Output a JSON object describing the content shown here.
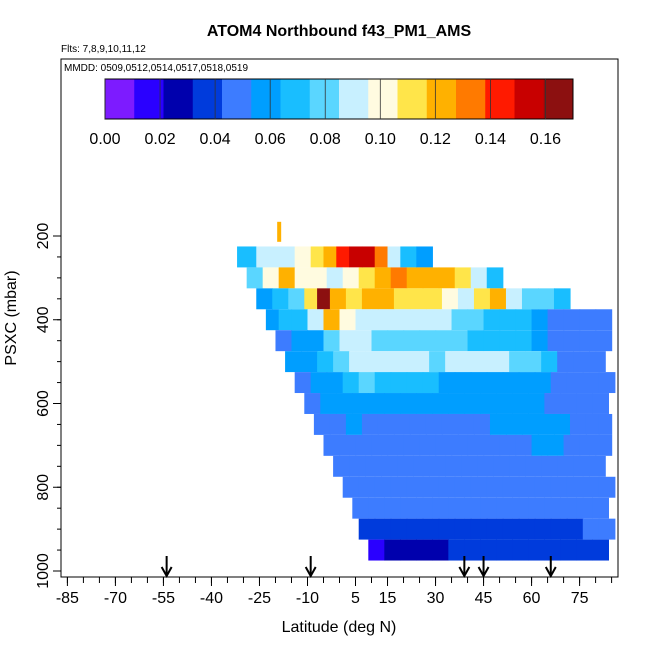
{
  "chart_data": {
    "type": "heatmap",
    "title": "ATOM4 Northbound f43_PM1_AMS",
    "subtitle": "Flts: 7,8,9,10,11,12",
    "note": "MMDD: 0509,0512,0514,0517,0518,0519",
    "xlabel": "Latitude (deg N)",
    "ylabel": "PSXC (mbar)",
    "xlim": [
      -87,
      87
    ],
    "ylim": [
      1000,
      0
    ],
    "xticks": [
      -85,
      -70,
      -55,
      -40,
      -25,
      -10,
      5,
      15,
      30,
      45,
      60,
      75
    ],
    "yticks": [
      200,
      400,
      600,
      800,
      1000
    ],
    "colorbar": {
      "range": [
        0,
        0.17
      ],
      "ticks": [
        0.0,
        0.02,
        0.04,
        0.06,
        0.08,
        0.1,
        0.12,
        0.14,
        0.16
      ],
      "tick_labels": [
        "0.00",
        "0.02",
        "0.04",
        "0.06",
        "0.08",
        "0.10",
        "0.12",
        "0.14",
        "0.16"
      ],
      "colors": [
        "#7d1bff",
        "#2a00ff",
        "#0000ad",
        "#003bdc",
        "#3d7cff",
        "#009eff",
        "#19beff",
        "#5ad6ff",
        "#c8f0ff",
        "#fffbe0",
        "#ffe54a",
        "#ffb100",
        "#ff7a00",
        "#ff1a00",
        "#c80000",
        "#8c1010"
      ]
    },
    "flight_markers_lat": [
      -54,
      -9,
      39,
      45,
      66
    ],
    "rows": [
      {
        "p": 250,
        "lat": [
          -32,
          -26,
          -20,
          -14,
          -9,
          -5,
          -1,
          3,
          7,
          11,
          15,
          19,
          24
        ],
        "v": [
          0.07,
          0.085,
          0.095,
          0.1,
          0.11,
          0.125,
          0.14,
          0.15,
          0.155,
          0.13,
          0.09,
          0.07,
          0.06
        ]
      },
      {
        "p": 300,
        "lat": [
          -29,
          -24,
          -19,
          -14,
          -9,
          -4,
          1,
          6,
          11,
          16,
          21,
          26,
          31,
          36,
          41,
          46
        ],
        "v": [
          0.08,
          0.1,
          0.12,
          0.105,
          0.1,
          0.095,
          0.1,
          0.11,
          0.12,
          0.13,
          0.125,
          0.125,
          0.12,
          0.11,
          0.09,
          0.07
        ]
      },
      {
        "p": 350,
        "lat": [
          -26,
          -21,
          -16,
          -11,
          -7,
          -3,
          2,
          7,
          12,
          17,
          22,
          27,
          32,
          37,
          42,
          47,
          52,
          57,
          62,
          67
        ],
        "v": [
          0.06,
          0.07,
          0.075,
          0.11,
          0.16,
          0.12,
          0.115,
          0.12,
          0.12,
          0.115,
          0.115,
          0.11,
          0.1,
          0.095,
          0.11,
          0.12,
          0.09,
          0.08,
          0.075,
          0.07
        ]
      },
      {
        "p": 400,
        "lat": [
          -23,
          -19,
          -15,
          -10,
          -5,
          0,
          5,
          10,
          15,
          20,
          25,
          30,
          35,
          40,
          45,
          50,
          55,
          60,
          65,
          70,
          75,
          80
        ],
        "v": [
          0.06,
          0.065,
          0.07,
          0.09,
          0.125,
          0.1,
          0.095,
          0.09,
          0.09,
          0.09,
          0.085,
          0.085,
          0.08,
          0.075,
          0.07,
          0.07,
          0.065,
          0.06,
          0.05,
          0.045,
          0.05,
          0.05
        ]
      },
      {
        "p": 450,
        "lat": [
          -20,
          -15,
          -10,
          -5,
          0,
          5,
          10,
          15,
          20,
          25,
          30,
          35,
          40,
          45,
          50,
          55,
          60,
          65,
          70,
          75,
          80
        ],
        "v": [
          0.05,
          0.055,
          0.06,
          0.075,
          0.09,
          0.085,
          0.08,
          0.08,
          0.08,
          0.08,
          0.075,
          0.075,
          0.07,
          0.07,
          0.07,
          0.065,
          0.06,
          0.05,
          0.045,
          0.05,
          0.05
        ]
      },
      {
        "p": 500,
        "lat": [
          -17,
          -12,
          -7,
          -2,
          3,
          8,
          13,
          18,
          23,
          28,
          33,
          38,
          43,
          48,
          53,
          58,
          63,
          68,
          73,
          78
        ],
        "v": [
          0.055,
          0.06,
          0.07,
          0.08,
          0.085,
          0.085,
          0.085,
          0.085,
          0.085,
          0.08,
          0.085,
          0.085,
          0.085,
          0.085,
          0.08,
          0.08,
          0.07,
          0.05,
          0.045,
          0.05
        ]
      },
      {
        "p": 550,
        "lat": [
          -14,
          -9,
          -4,
          1,
          6,
          11,
          16,
          21,
          26,
          31,
          36,
          41,
          46,
          51,
          56,
          61,
          66,
          71,
          76,
          81
        ],
        "v": [
          0.05,
          0.055,
          0.06,
          0.07,
          0.075,
          0.07,
          0.065,
          0.065,
          0.065,
          0.06,
          0.06,
          0.06,
          0.06,
          0.06,
          0.06,
          0.055,
          0.05,
          0.05,
          0.05,
          0.05
        ]
      },
      {
        "p": 600,
        "lat": [
          -11,
          -6,
          -1,
          4,
          9,
          14,
          19,
          24,
          29,
          34,
          39,
          44,
          49,
          54,
          59,
          64,
          69,
          74,
          79
        ],
        "v": [
          0.05,
          0.055,
          0.06,
          0.06,
          0.06,
          0.055,
          0.055,
          0.055,
          0.055,
          0.055,
          0.055,
          0.055,
          0.06,
          0.06,
          0.055,
          0.05,
          0.05,
          0.05,
          0.05
        ]
      },
      {
        "p": 650,
        "lat": [
          -8,
          -3,
          2,
          7,
          12,
          17,
          22,
          27,
          32,
          37,
          42,
          47,
          52,
          57,
          62,
          67,
          72,
          77,
          81
        ],
        "v": [
          0.045,
          0.05,
          0.055,
          0.05,
          0.05,
          0.05,
          0.05,
          0.05,
          0.05,
          0.05,
          0.05,
          0.055,
          0.055,
          0.06,
          0.06,
          0.055,
          0.05,
          0.05,
          0.05
        ]
      },
      {
        "p": 700,
        "lat": [
          -5,
          0,
          5,
          10,
          15,
          20,
          25,
          30,
          35,
          40,
          45,
          50,
          55,
          60,
          65,
          70,
          75,
          80
        ],
        "v": [
          0.045,
          0.05,
          0.05,
          0.05,
          0.05,
          0.05,
          0.05,
          0.05,
          0.05,
          0.05,
          0.05,
          0.05,
          0.05,
          0.055,
          0.055,
          0.05,
          0.05,
          0.05
        ]
      },
      {
        "p": 750,
        "lat": [
          -2,
          3,
          8,
          13,
          18,
          23,
          28,
          33,
          38,
          43,
          48,
          53,
          58,
          63,
          68,
          73,
          78
        ],
        "v": [
          0.045,
          0.045,
          0.05,
          0.045,
          0.045,
          0.045,
          0.045,
          0.045,
          0.045,
          0.045,
          0.05,
          0.05,
          0.05,
          0.05,
          0.05,
          0.05,
          0.05
        ]
      },
      {
        "p": 800,
        "lat": [
          1,
          6,
          11,
          16,
          21,
          26,
          31,
          36,
          41,
          46,
          51,
          56,
          61,
          66,
          71,
          76,
          81
        ],
        "v": [
          0.045,
          0.045,
          0.045,
          0.045,
          0.045,
          0.045,
          0.045,
          0.045,
          0.045,
          0.045,
          0.045,
          0.05,
          0.05,
          0.05,
          0.05,
          0.05,
          0.05
        ]
      },
      {
        "p": 850,
        "lat": [
          4,
          9,
          14,
          19,
          24,
          29,
          34,
          39,
          44,
          49,
          54,
          59,
          64,
          69,
          74,
          79
        ],
        "v": [
          0.045,
          0.045,
          0.045,
          0.045,
          0.045,
          0.045,
          0.045,
          0.045,
          0.045,
          0.045,
          0.045,
          0.045,
          0.045,
          0.045,
          0.045,
          0.045
        ]
      },
      {
        "p": 900,
        "lat": [
          6,
          11,
          16,
          21,
          26,
          31,
          36,
          41,
          46,
          51,
          56,
          61,
          66,
          71,
          76,
          81
        ],
        "v": [
          0.04,
          0.04,
          0.04,
          0.04,
          0.04,
          0.035,
          0.035,
          0.035,
          0.04,
          0.04,
          0.04,
          0.04,
          0.04,
          0.04,
          0.045,
          0.045
        ]
      },
      {
        "p": 950,
        "lat": [
          9,
          14,
          19,
          24,
          29,
          34,
          39,
          44,
          49,
          54,
          59,
          64,
          69,
          74,
          79
        ],
        "v": [
          0.02,
          0.025,
          0.025,
          0.03,
          0.03,
          0.035,
          0.035,
          0.035,
          0.035,
          0.04,
          0.04,
          0.04,
          0.04,
          0.04,
          0.04
        ]
      }
    ],
    "extra_cells": [
      {
        "p": 190,
        "lat": -19,
        "v": 0.12
      }
    ]
  }
}
